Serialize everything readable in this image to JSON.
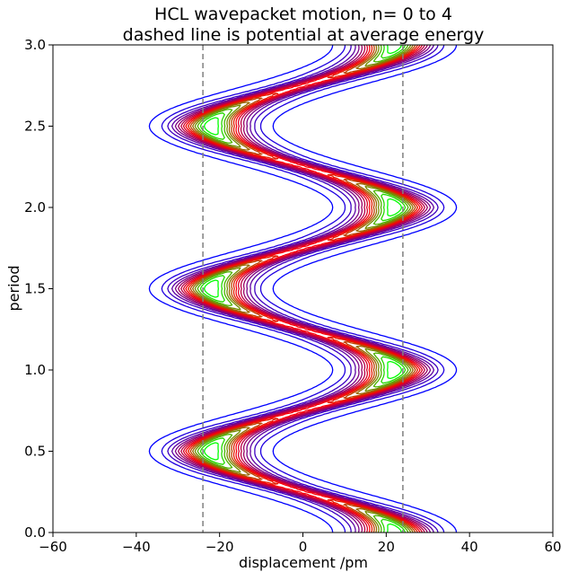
{
  "chart_data": {
    "type": "contour",
    "title": [
      "HCL wavepacket motion, n= 0 to 4",
      "dashed line is potential at average energy"
    ],
    "xlabel": "displacement /pm",
    "ylabel": "period",
    "xlim": [
      -60,
      60
    ],
    "ylim": [
      0.0,
      3.0
    ],
    "xticks": [
      -60,
      -40,
      -20,
      0,
      20,
      40,
      60
    ],
    "xtick_labels": [
      "−60",
      "−40",
      "−20",
      "0",
      "20",
      "40",
      "60"
    ],
    "yticks": [
      0.0,
      0.5,
      1.0,
      1.5,
      2.0,
      2.5,
      3.0
    ],
    "ytick_labels": [
      "0.0",
      "0.5",
      "1.0",
      "1.5",
      "2.0",
      "2.5",
      "3.0"
    ],
    "grid": false,
    "potential_lines": {
      "x": [
        -24,
        24
      ],
      "style": "dashed",
      "color": "#808080"
    },
    "wavepacket": {
      "oscillation_amplitude": 22,
      "period": 1.0,
      "centers": [
        {
          "x": 22,
          "y": 0.0
        },
        {
          "x": -22,
          "y": 0.5
        },
        {
          "x": 22,
          "y": 1.0
        },
        {
          "x": -22,
          "y": 1.5
        },
        {
          "x": 22,
          "y": 2.0
        },
        {
          "x": -22,
          "y": 2.5
        },
        {
          "x": 22,
          "y": 3.0
        }
      ],
      "contour_levels": 16
    },
    "colors": {
      "low_level": "#0000ff",
      "mid_level": "#ff0000",
      "high_level": "#00ff00",
      "axes": "#000000"
    }
  }
}
